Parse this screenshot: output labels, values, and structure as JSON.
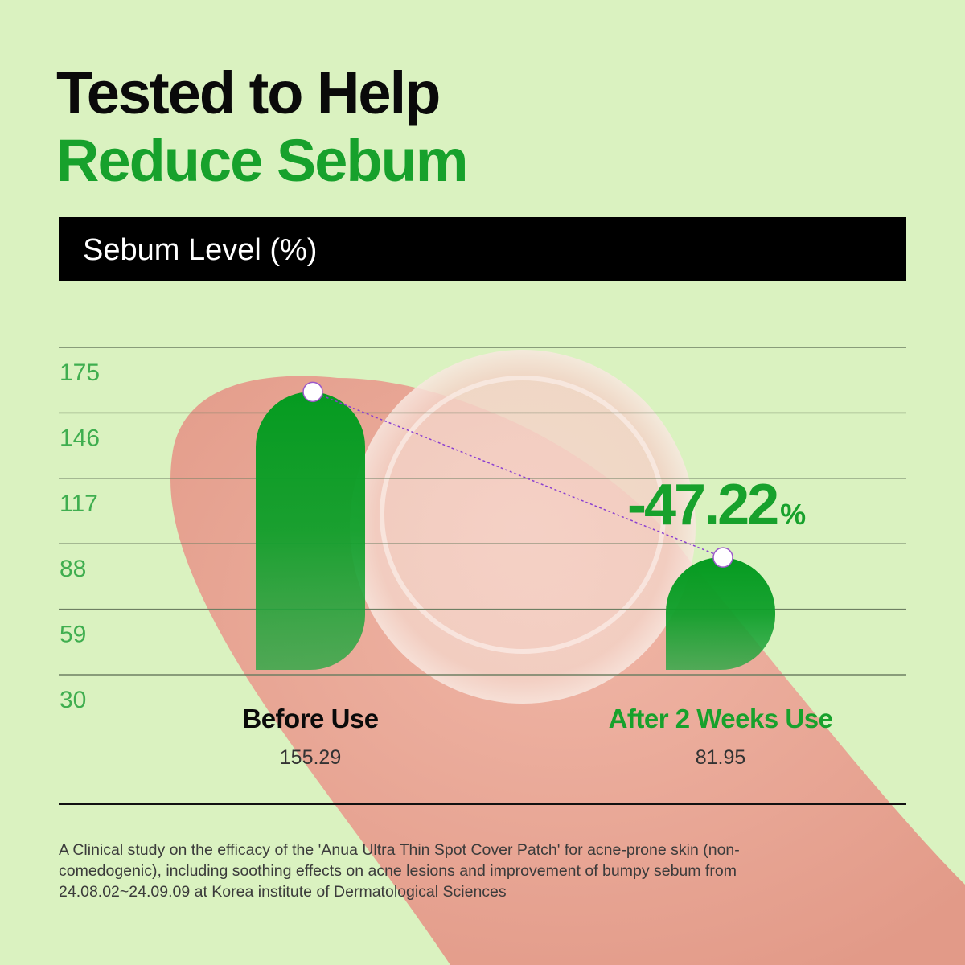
{
  "header": {
    "title_line1": "Tested to Help",
    "title_line2": "Reduce Sebum"
  },
  "band_label": "Sebum Level (%)",
  "colors": {
    "accent": "#17a12c",
    "background": "#daf2c0",
    "bar": "#0b9d25"
  },
  "chart_data": {
    "type": "bar",
    "title": "Sebum Level (%)",
    "categories": [
      "Before Use",
      "After 2 Weeks Use"
    ],
    "values": [
      155.29,
      81.95
    ],
    "value_labels": [
      "155.29",
      "81.95"
    ],
    "y_ticks": [
      "175",
      "146",
      "117",
      "88",
      "59",
      "30"
    ],
    "ylim": [
      30,
      175
    ],
    "grid": true,
    "annotation": {
      "value": "-47.22",
      "unit": "%"
    }
  },
  "footnote": "A Clinical study on the efficacy of the 'Anua Ultra Thin Spot Cover Patch' for acne-prone skin (non-comedogenic), including soothing effects on acne lesions and improvement of bumpy sebum from 24.08.02~24.09.09 at Korea institute of Dermatological Sciences"
}
